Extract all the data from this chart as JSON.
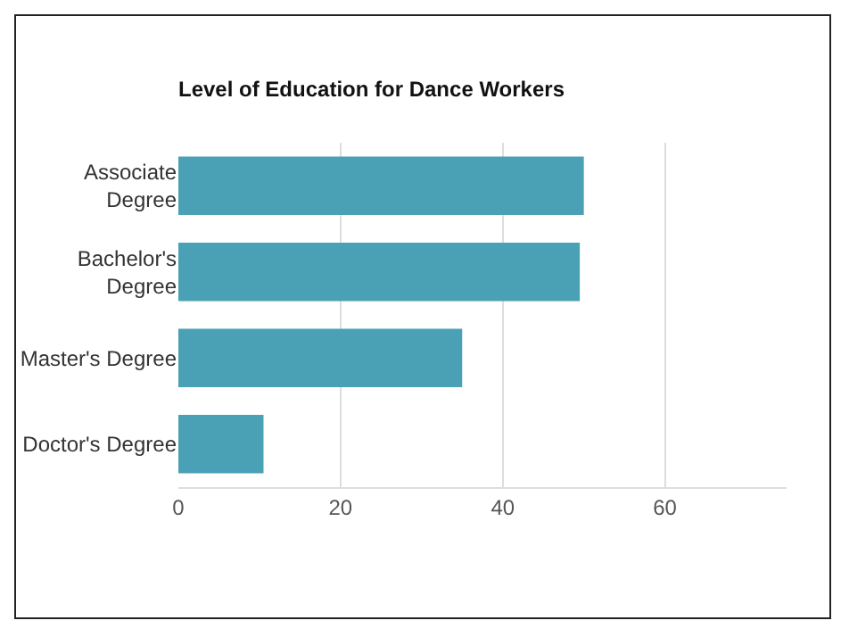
{
  "chart_data": {
    "type": "bar",
    "orientation": "horizontal",
    "title": "Level of Education for Dance Workers",
    "categories": [
      "Associate Degree",
      "Bachelor's Degree",
      "Master's Degree",
      "Doctor's Degree"
    ],
    "values": [
      50,
      49.5,
      35,
      10.5
    ],
    "color": "#4aa0b5",
    "xlim": [
      0,
      75
    ],
    "xticks": [
      0,
      20,
      40,
      60
    ],
    "grid": "x"
  }
}
